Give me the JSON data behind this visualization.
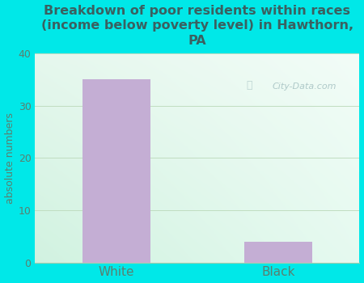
{
  "categories": [
    "White",
    "Black"
  ],
  "values": [
    35,
    4
  ],
  "bar_color": "#c4aed4",
  "title": "Breakdown of poor residents within races\n(income below poverty level) in Hawthorn,\nPA",
  "ylabel": "absolute numbers",
  "ylim": [
    0,
    40
  ],
  "yticks": [
    0,
    10,
    20,
    30,
    40
  ],
  "bg_color": "#00e8e8",
  "title_color": "#3a6060",
  "axis_color": "#5a8070",
  "tick_color": "#5a8070",
  "watermark_text": "City-Data.com",
  "watermark_color": "#a8c4c4",
  "grid_color": "#c0ddc0",
  "title_fontsize": 11.5,
  "bar_width": 0.42,
  "plot_bg_topleft": "#d0eedd",
  "plot_bg_bottomright": "#eef8f4",
  "plot_bg_topright": "#e8f5ee"
}
